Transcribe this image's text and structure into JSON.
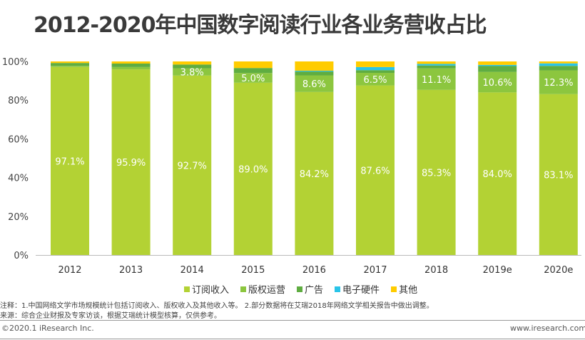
{
  "chart_data": {
    "type": "bar",
    "stacked": true,
    "title": "2012-2020年中国数字阅读行业各业务营收占比",
    "categories": [
      "2012",
      "2013",
      "2014",
      "2015",
      "2016",
      "2017",
      "2018",
      "2019e",
      "2020e"
    ],
    "ylim": [
      0,
      100
    ],
    "yticks": [
      "0%",
      "20%",
      "40%",
      "60%",
      "80%",
      "100%"
    ],
    "grid": false,
    "legend_position": "bottom",
    "series": [
      {
        "name": "订阅收入",
        "color": "#b3d234",
        "values": [
          97.1,
          95.9,
          92.7,
          89.0,
          84.2,
          87.6,
          85.3,
          84.0,
          83.1
        ],
        "labels": [
          "97.1%",
          "95.9%",
          "92.7%",
          "89.0%",
          "84.2%",
          "87.6%",
          "85.3%",
          "84.0%",
          "83.1%"
        ]
      },
      {
        "name": "版权运营",
        "color": "#8cc63f",
        "values": [
          0.6,
          1.2,
          3.8,
          5.0,
          8.6,
          6.5,
          11.1,
          10.6,
          12.3
        ],
        "labels": [
          "",
          "",
          "3.8%",
          "5.0%",
          "8.6%",
          "6.5%",
          "11.1%",
          "10.6%",
          "12.3%"
        ]
      },
      {
        "name": "广告",
        "color": "#5fad41",
        "values": [
          1.5,
          1.8,
          1.9,
          2.6,
          2.0,
          1.4,
          1.5,
          3.0,
          2.3
        ]
      },
      {
        "name": "电子硬件",
        "color": "#29c4e8",
        "values": [
          0,
          0,
          0,
          0,
          0.4,
          1.6,
          0.8,
          0.6,
          1.3
        ]
      },
      {
        "name": "其他",
        "color": "#ffcc00",
        "values": [
          0.8,
          1.1,
          1.6,
          3.4,
          4.8,
          2.9,
          1.3,
          1.8,
          1.0
        ]
      }
    ]
  },
  "notes": {
    "note": "注释：1.中国网络文学市场规模统计包括订阅收入、版权收入及其他收入等。 2.部分数据将在艾瑞2018年网络文学相关报告中做出调整。",
    "source": "来源：综合企业财报及专家访谈，根据艾瑞统计模型核算，仅供参考。"
  },
  "footer": {
    "copyright": "©2020.1 iResearch Inc.",
    "url": "www.iresearch.com.cn"
  }
}
